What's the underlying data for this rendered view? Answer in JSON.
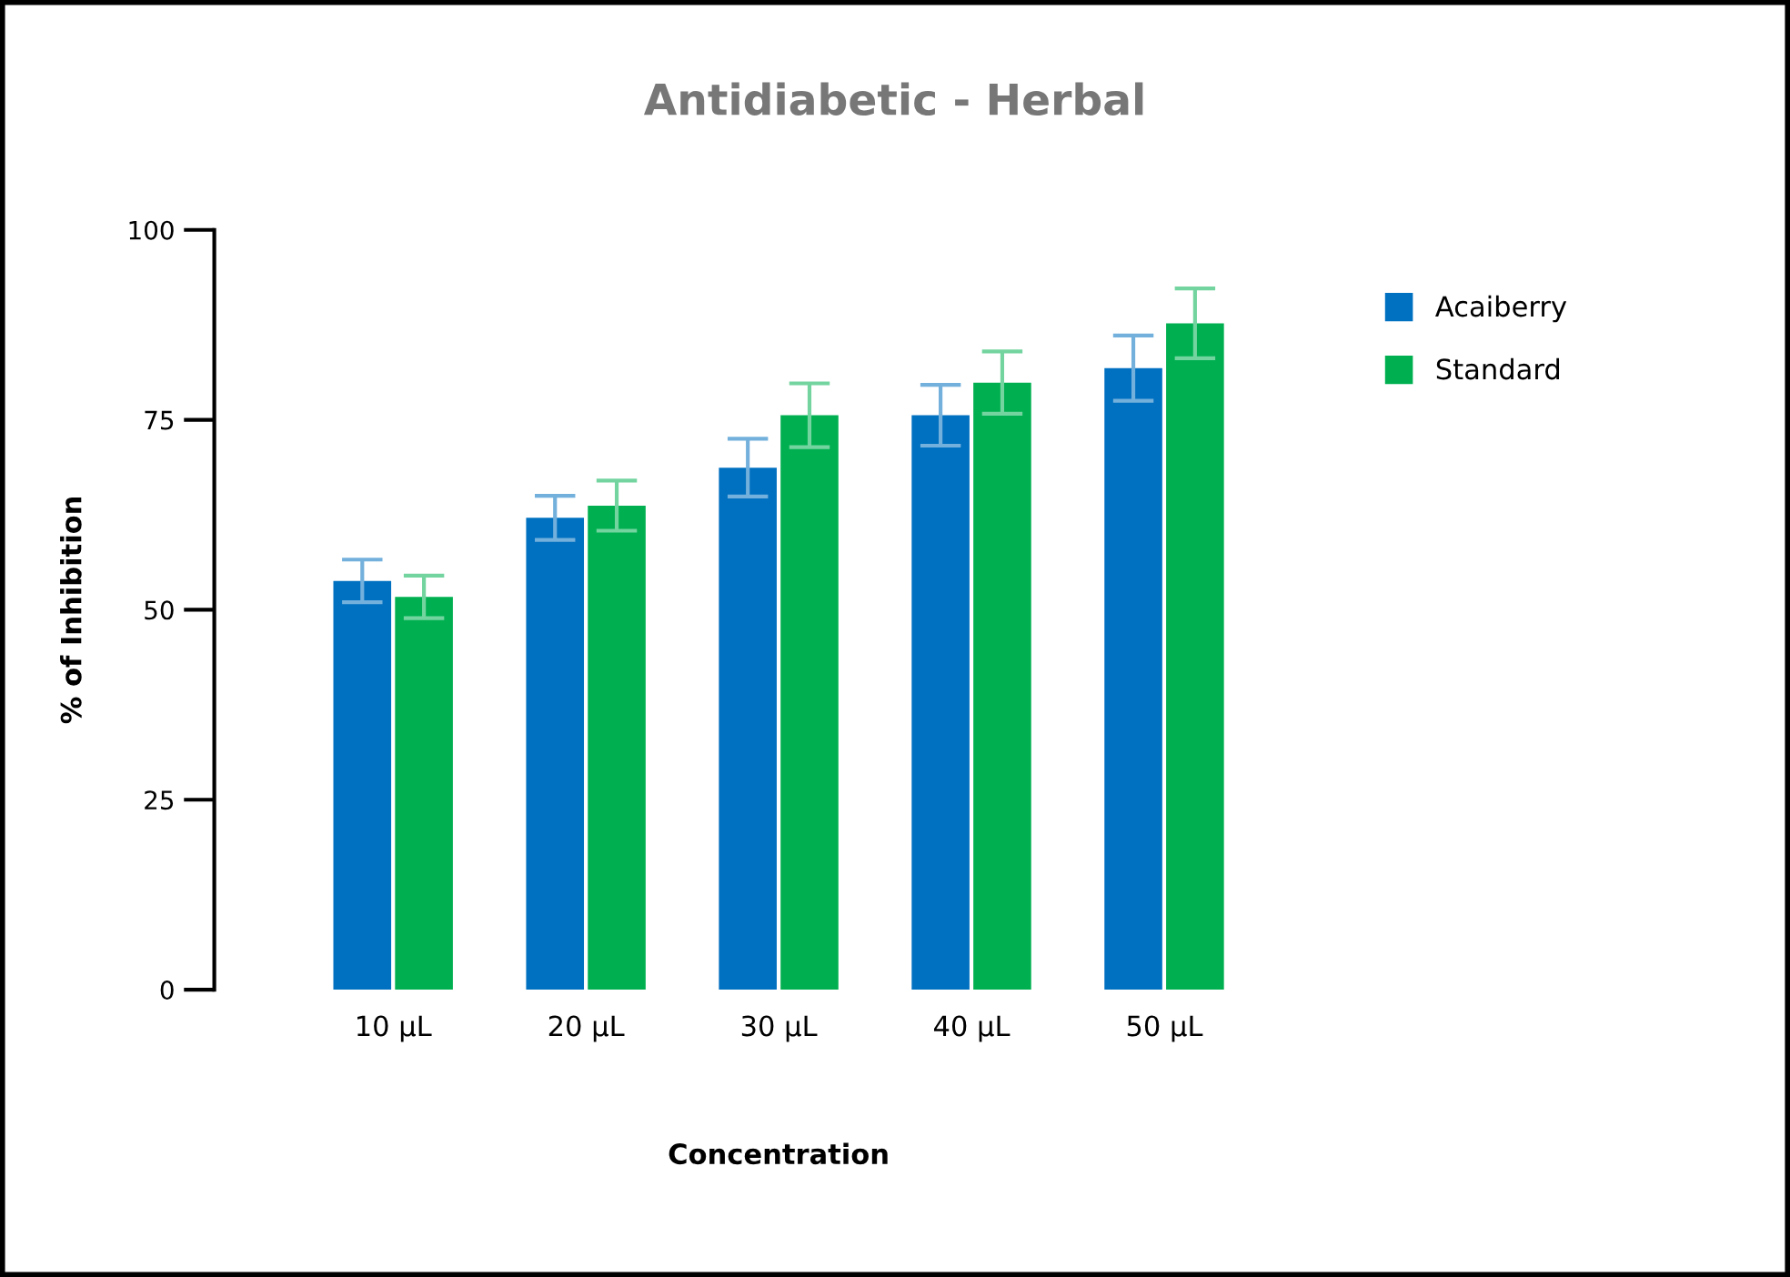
{
  "chart_data": {
    "type": "bar",
    "title": "Antidiabetic - Herbal",
    "xlabel": "Concentration",
    "ylabel": "% of Inhibition",
    "categories": [
      "10 µL",
      "20 µL",
      "30 µL",
      "40 µL",
      "50 µL"
    ],
    "series": [
      {
        "name": "Acaiberry",
        "color": "#0070c0",
        "values": [
          53.8,
          62.1,
          68.7,
          75.6,
          81.8
        ],
        "errors": [
          2.8,
          2.9,
          3.8,
          4,
          4.3
        ]
      },
      {
        "name": "Standard",
        "color": "#00b050",
        "values": [
          51.7,
          63.7,
          75.6,
          79.9,
          87.7
        ],
        "errors": [
          2.8,
          3.3,
          4.2,
          4.1,
          4.6
        ]
      }
    ],
    "ylim": [
      0,
      100
    ],
    "yticks": [
      0,
      25,
      50,
      75,
      100
    ],
    "grid": false,
    "legend": "top right"
  }
}
